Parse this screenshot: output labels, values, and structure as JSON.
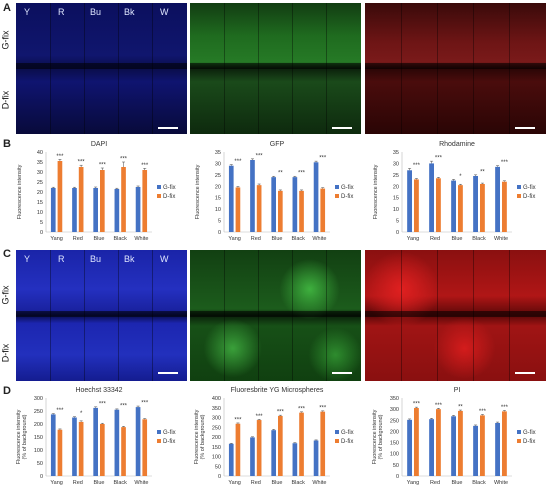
{
  "panel_labels": [
    "A",
    "B",
    "C",
    "D"
  ],
  "row_labels": {
    "top": "G-fix",
    "bottom": "D-fix"
  },
  "column_labels": [
    "Y",
    "R",
    "Bu",
    "Bk",
    "W"
  ],
  "colors": {
    "gfix": "#4472c4",
    "dfix": "#ed7d31"
  },
  "chart_data": [
    {
      "type": "bar",
      "title": "DAPI",
      "categories": [
        "Yang",
        "Red",
        "Blue",
        "Black",
        "White"
      ],
      "ylabel": "Fluorescence intensity",
      "ylim": [
        0,
        40
      ],
      "yticks": [
        0,
        5,
        10,
        15,
        20,
        25,
        30,
        35,
        40
      ],
      "series": [
        {
          "name": "G-fix",
          "values": [
            22,
            22,
            22,
            21.5,
            22.5
          ],
          "errors": [
            0.4,
            0.4,
            0.5,
            0.4,
            0.5
          ]
        },
        {
          "name": "D-fix",
          "values": [
            35.5,
            32.5,
            31,
            32.5,
            31
          ],
          "errors": [
            0.8,
            0.9,
            1.0,
            2.5,
            0.8
          ]
        }
      ],
      "significance": [
        "***",
        "***",
        "***",
        "***",
        "***"
      ]
    },
    {
      "type": "bar",
      "title": "GFP",
      "categories": [
        "Yang",
        "Red",
        "Blue",
        "Black",
        "White"
      ],
      "ylabel": "Fluorescence intensity",
      "ylim": [
        0,
        35
      ],
      "yticks": [
        0,
        5,
        10,
        15,
        20,
        25,
        30,
        35
      ],
      "series": [
        {
          "name": "G-fix",
          "values": [
            29,
            31.5,
            24,
            24,
            30.5
          ],
          "errors": [
            0.5,
            0.5,
            0.4,
            0.4,
            0.5
          ]
        },
        {
          "name": "D-fix",
          "values": [
            19.5,
            20.5,
            18,
            18,
            19
          ],
          "errors": [
            0.4,
            0.5,
            0.4,
            0.4,
            0.4
          ]
        }
      ],
      "significance": [
        "***",
        "***",
        "**",
        "***",
        "***"
      ]
    },
    {
      "type": "bar",
      "title": "Rhodamine",
      "categories": [
        "Yang",
        "Red",
        "Blue",
        "Black",
        "White"
      ],
      "ylabel": "Fluorescence intensity",
      "ylim": [
        0,
        35
      ],
      "yticks": [
        0,
        5,
        10,
        15,
        20,
        25,
        30,
        35
      ],
      "series": [
        {
          "name": "G-fix",
          "values": [
            27,
            30,
            22.5,
            24.5,
            28.5
          ],
          "errors": [
            0.8,
            1.0,
            0.5,
            0.5,
            0.5
          ]
        },
        {
          "name": "D-fix",
          "values": [
            23,
            23.5,
            20.5,
            21,
            22
          ],
          "errors": [
            0.4,
            0.4,
            0.4,
            0.4,
            0.4
          ]
        }
      ],
      "significance": [
        "***",
        "***",
        "*",
        "**",
        "***"
      ]
    },
    {
      "type": "bar",
      "title": "Hoechst 33342",
      "categories": [
        "Yang",
        "Red",
        "Blue",
        "Black",
        "White"
      ],
      "ylabel": "Fluorescence intensity (% of background)",
      "ylim": [
        0,
        300
      ],
      "yticks": [
        0,
        50,
        100,
        150,
        200,
        250,
        300
      ],
      "series": [
        {
          "name": "G-fix",
          "values": [
            237,
            225,
            262,
            255,
            265
          ],
          "errors": [
            3,
            3,
            4,
            3,
            4
          ]
        },
        {
          "name": "D-fix",
          "values": [
            178,
            208,
            200,
            188,
            218
          ],
          "errors": [
            3,
            4,
            3,
            3,
            3
          ]
        }
      ],
      "significance": [
        "***",
        "*",
        "***",
        "***",
        "***"
      ]
    },
    {
      "type": "bar",
      "title": "Fluoresbrite YG Microspheres",
      "categories": [
        "Yang",
        "Red",
        "Blue",
        "Black",
        "White"
      ],
      "ylabel": "Fluorescence intensity (% of background)",
      "ylim": [
        0,
        400
      ],
      "yticks": [
        0,
        50,
        100,
        150,
        200,
        250,
        300,
        350,
        400
      ],
      "series": [
        {
          "name": "G-fix",
          "values": [
            165,
            198,
            235,
            168,
            182
          ],
          "errors": [
            3,
            3,
            4,
            3,
            3
          ]
        },
        {
          "name": "D-fix",
          "values": [
            268,
            287,
            308,
            325,
            330
          ],
          "errors": [
            4,
            4,
            4,
            4,
            4
          ]
        }
      ],
      "significance": [
        "***",
        "***",
        "***",
        "***",
        "***"
      ]
    },
    {
      "type": "bar",
      "title": "PI",
      "categories": [
        "Yang",
        "Red",
        "Blue",
        "Black",
        "White"
      ],
      "ylabel": "Fluorescence intensity (% of background)",
      "ylim": [
        0,
        350
      ],
      "yticks": [
        0,
        50,
        100,
        150,
        200,
        250,
        300,
        350
      ],
      "series": [
        {
          "name": "G-fix",
          "values": [
            252,
            255,
            268,
            225,
            238
          ],
          "errors": [
            4,
            4,
            4,
            4,
            4
          ]
        },
        {
          "name": "D-fix",
          "values": [
            305,
            300,
            292,
            272,
            290
          ],
          "errors": [
            4,
            4,
            4,
            4,
            4
          ]
        }
      ],
      "significance": [
        "***",
        "***",
        "**",
        "***",
        "***"
      ]
    }
  ]
}
